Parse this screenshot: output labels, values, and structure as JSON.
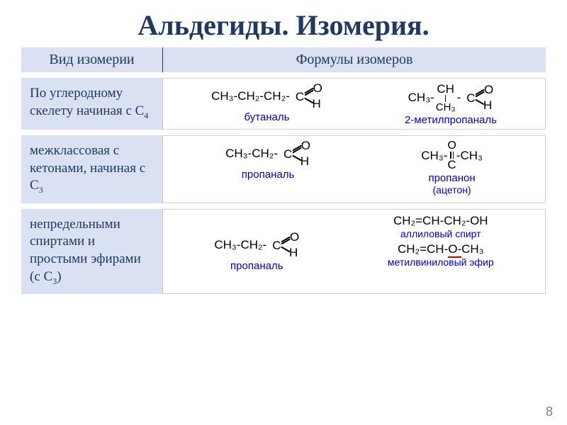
{
  "title": "Альдегиды. Изомерия.",
  "header": {
    "col1": "Вид изомерии",
    "col2": "Формулы изомеров"
  },
  "rows": [
    {
      "label_parts": [
        "По углеродному скелету",
        "  начиная с С",
        "4"
      ],
      "mols": [
        {
          "chain": "CH₃-CH₂-CH₂-",
          "has_cho": true,
          "name": "бутаналь"
        },
        {
          "chain_prefix": "CH₃-",
          "branch_top": "CH",
          "branch_bottom": "CH₃",
          "chain_suffix": "-",
          "has_cho": true,
          "name": "2-метилпропаналь"
        }
      ]
    },
    {
      "label_parts": [
        "межклассовая",
        " с кетонами, начиная с С",
        "3"
      ],
      "mols": [
        {
          "chain": "CH₃-CH₂-",
          "has_cho": true,
          "name": "пропаналь"
        },
        {
          "ketone_left": "CH₃-",
          "ketone_right": "-CH₃",
          "ketone_o": "O",
          "ketone_c": "C",
          "name": "пропанон",
          "name2": "(ацетон)"
        }
      ]
    },
    {
      "label_parts": [
        "непредельными спиртами и простыми эфирами (с С",
        "3",
        ")"
      ],
      "mols": [
        {
          "chain": "CH₃-CH₂-",
          "has_cho": true,
          "name": "пропаналь"
        },
        {
          "stack": [
            {
              "formula": "CH₂=CH-CH₂-OH",
              "name": "аллиловый спирт"
            },
            {
              "formula_pre": "CH₂=CH-",
              "formula_underline": "O-",
              "formula_post": "CH₃",
              "name": "метилвиниловый эфир"
            }
          ]
        }
      ]
    }
  ],
  "pagenum": "8",
  "colors": {
    "title": "#1f3864",
    "header_bg": "#d9e1f2",
    "molname": "#0000cd",
    "underline": "#c00000"
  }
}
